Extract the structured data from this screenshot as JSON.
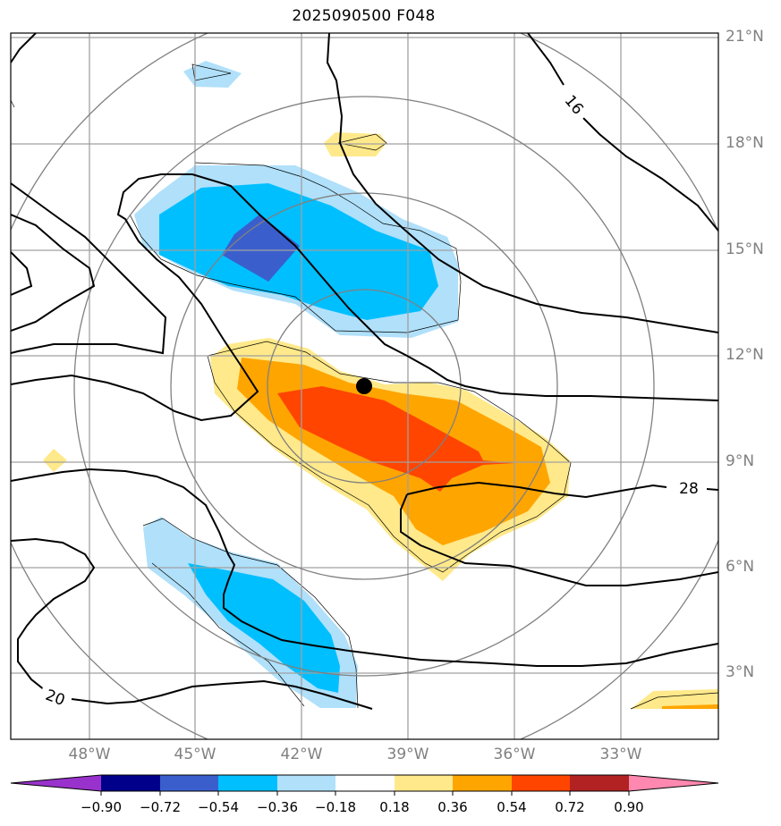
{
  "title": "2025090500 F048",
  "lat_labels": [
    "21°N",
    "18°N",
    "15°N",
    "12°N",
    "9°N",
    "6°N",
    "3°N"
  ],
  "lon_labels": [
    "48°W",
    "45°W",
    "42°W",
    "39°W",
    "36°W",
    "33°W"
  ],
  "contour_labels": {
    "upper_right": "16",
    "right": "28",
    "lower_left": "20"
  },
  "colorbar": {
    "ticks": [
      "−0.90",
      "−0.72",
      "−0.54",
      "−0.36",
      "−0.18",
      "0.18",
      "0.36",
      "0.54",
      "0.72",
      "0.90"
    ],
    "colors": [
      "#9932cc",
      "#00008b",
      "#3a5fcd",
      "#00bfff",
      "#b0e0fa",
      "#ffffff",
      "#ffe98a",
      "#ffa500",
      "#ff4500",
      "#b22222",
      "#ff88b0"
    ]
  },
  "colors": {
    "neg_light": "#b0e0fa",
    "neg_mid": "#00bfff",
    "neg_dark": "#3a5fcd",
    "pos_light": "#ffe98a",
    "pos_mid": "#ffa500",
    "pos_dark": "#ff4500",
    "grid": "#a0a0a0",
    "rings": "#808080"
  },
  "storm_center": {
    "lat": 11.1,
    "lon": -40.2
  }
}
